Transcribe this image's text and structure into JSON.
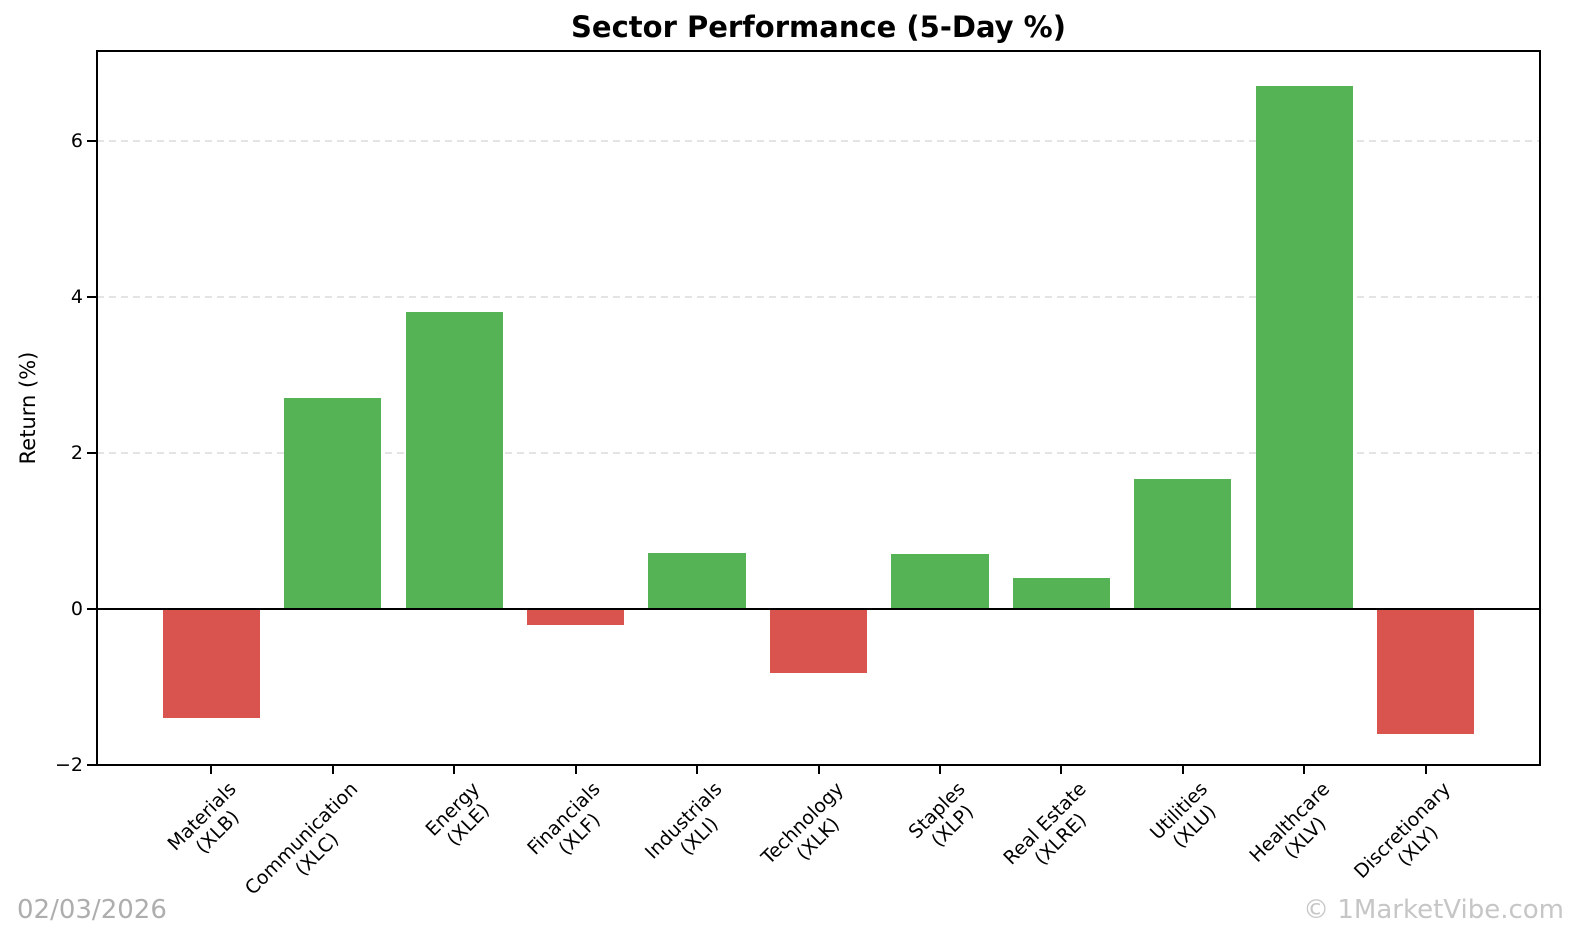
{
  "page": {
    "background": "#ffffff"
  },
  "footer": {
    "date": "02/03/2026",
    "watermark": "© 1MarketVibe.com"
  },
  "chart_data": {
    "type": "bar",
    "title": "Sector Performance (5-Day %)",
    "xlabel": "",
    "ylabel": "Return (%)",
    "ylim": [
      -2,
      7.15
    ],
    "yticks": [
      {
        "value": -2,
        "label": "−2"
      },
      {
        "value": 0,
        "label": "0"
      },
      {
        "value": 2,
        "label": "2"
      },
      {
        "value": 4,
        "label": "4"
      },
      {
        "value": 6,
        "label": "6"
      }
    ],
    "grid": {
      "axis": "y",
      "style": "dashed",
      "color": "#e4e4e4"
    },
    "zero_line": true,
    "legend": null,
    "categories": [
      "Materials (XLB)",
      "Communication (XLC)",
      "Energy (XLE)",
      "Financials (XLF)",
      "Industrials (XLI)",
      "Technology (XLK)",
      "Staples (XLP)",
      "Real Estate (XLRE)",
      "Utilities (XLU)",
      "Healthcare (XLV)",
      "Discretionary (XLY)"
    ],
    "values": [
      -1.4,
      2.7,
      3.8,
      -0.2,
      0.72,
      -0.82,
      0.7,
      0.4,
      1.66,
      6.7,
      -1.6
    ],
    "bars": [
      {
        "sector": "Materials",
        "ticker": "(XLB)",
        "value": -1.4
      },
      {
        "sector": "Communication",
        "ticker": "(XLC)",
        "value": 2.7
      },
      {
        "sector": "Energy",
        "ticker": "(XLE)",
        "value": 3.8
      },
      {
        "sector": "Financials",
        "ticker": "(XLF)",
        "value": -0.2
      },
      {
        "sector": "Industrials",
        "ticker": "(XLI)",
        "value": 0.72
      },
      {
        "sector": "Technology",
        "ticker": "(XLK)",
        "value": -0.82
      },
      {
        "sector": "Staples",
        "ticker": "(XLP)",
        "value": 0.7
      },
      {
        "sector": "Real Estate",
        "ticker": "(XLRE)",
        "value": 0.4
      },
      {
        "sector": "Utilities",
        "ticker": "(XLU)",
        "value": 1.66
      },
      {
        "sector": "Healthcare",
        "ticker": "(XLV)",
        "value": 6.7
      },
      {
        "sector": "Discretionary",
        "ticker": "(XLY)",
        "value": -1.6
      }
    ],
    "colors": {
      "positive": "#55b356",
      "negative": "#d9534f",
      "axis": "#000000",
      "grid": "#e4e4e4",
      "footer_text": "#aeaeae"
    }
  }
}
